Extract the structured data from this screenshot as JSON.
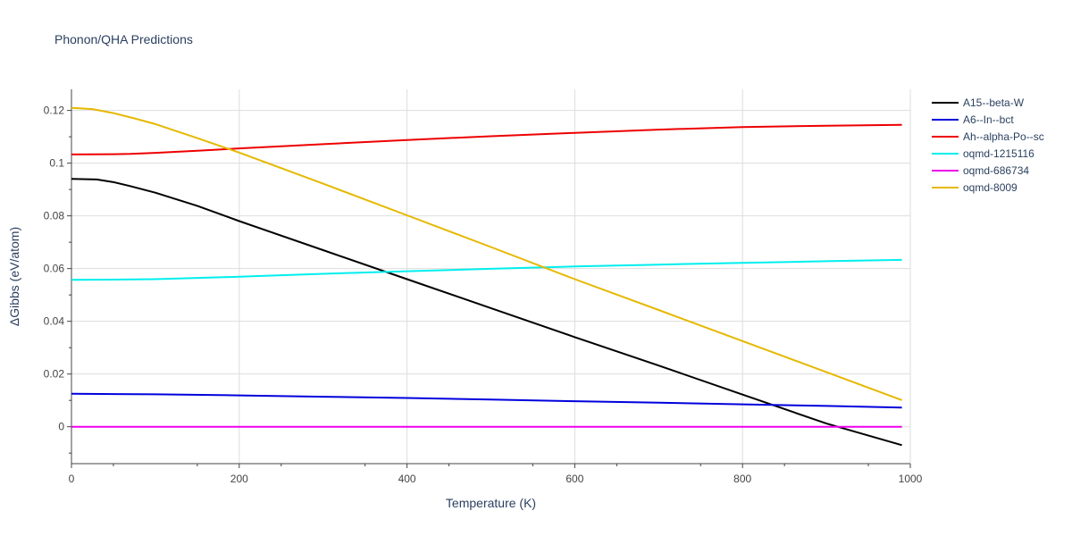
{
  "chart_data": {
    "type": "line",
    "title": "Phonon/QHA Predictions",
    "xlabel": "Temperature (K)",
    "ylabel": "ΔGibbs (eV/atom)",
    "xlim": [
      0,
      1000
    ],
    "ylim": [
      -0.014,
      0.128
    ],
    "xticks": [
      0,
      200,
      400,
      600,
      800,
      1000
    ],
    "xtick_labels": [
      "0",
      "200",
      "400",
      "600",
      "800",
      "1000"
    ],
    "yticks": [
      0,
      0.02,
      0.04,
      0.06,
      0.08,
      0.1,
      0.12
    ],
    "ytick_labels": [
      "0",
      "0.02",
      "0.04",
      "0.06",
      "0.08",
      "0.1",
      "0.12"
    ],
    "grid": true,
    "legend_position": "right",
    "series": [
      {
        "name": "A15--beta-W",
        "color": "#000000",
        "x": [
          0,
          30,
          50,
          70,
          100,
          150,
          200,
          300,
          400,
          500,
          600,
          700,
          800,
          900,
          990
        ],
        "y": [
          0.094,
          0.0938,
          0.0928,
          0.0913,
          0.0888,
          0.0838,
          0.078,
          0.067,
          0.056,
          0.045,
          0.034,
          0.0232,
          0.0122,
          0.0012,
          -0.007
        ]
      },
      {
        "name": "A6--In--bct",
        "color": "#0000dd",
        "x": [
          0,
          100,
          200,
          300,
          400,
          500,
          600,
          700,
          800,
          900,
          990
        ],
        "y": [
          0.0125,
          0.0123,
          0.0119,
          0.0114,
          0.0109,
          0.0103,
          0.0097,
          0.0091,
          0.0085,
          0.0079,
          0.0073
        ]
      },
      {
        "name": "Ah--alpha-Po--sc",
        "color": "#ee0000",
        "x": [
          0,
          50,
          70,
          100,
          150,
          200,
          300,
          400,
          500,
          600,
          700,
          800,
          900,
          990
        ],
        "y": [
          0.1033,
          0.1034,
          0.1035,
          0.1039,
          0.1047,
          0.1056,
          0.1072,
          0.1088,
          0.1102,
          0.1115,
          0.1127,
          0.1137,
          0.1142,
          0.1145
        ]
      },
      {
        "name": "oqmd-1215116",
        "color": "#00eeee",
        "x": [
          0,
          50,
          100,
          200,
          300,
          400,
          500,
          600,
          700,
          800,
          900,
          990
        ],
        "y": [
          0.0557,
          0.0558,
          0.056,
          0.0569,
          0.058,
          0.059,
          0.0599,
          0.0608,
          0.0615,
          0.0622,
          0.0628,
          0.0633
        ]
      },
      {
        "name": "oqmd-686734",
        "color": "#ee00ee",
        "x": [
          0,
          990
        ],
        "y": [
          0,
          0
        ]
      },
      {
        "name": "oqmd-8009",
        "color": "#e6b800",
        "x": [
          0,
          25,
          50,
          75,
          100,
          150,
          200,
          300,
          400,
          500,
          600,
          700,
          800,
          900,
          990
        ],
        "y": [
          0.121,
          0.1205,
          0.119,
          0.117,
          0.1148,
          0.1095,
          0.104,
          0.0922,
          0.0802,
          0.0682,
          0.056,
          0.0443,
          0.0325,
          0.0207,
          0.0101
        ]
      }
    ]
  }
}
